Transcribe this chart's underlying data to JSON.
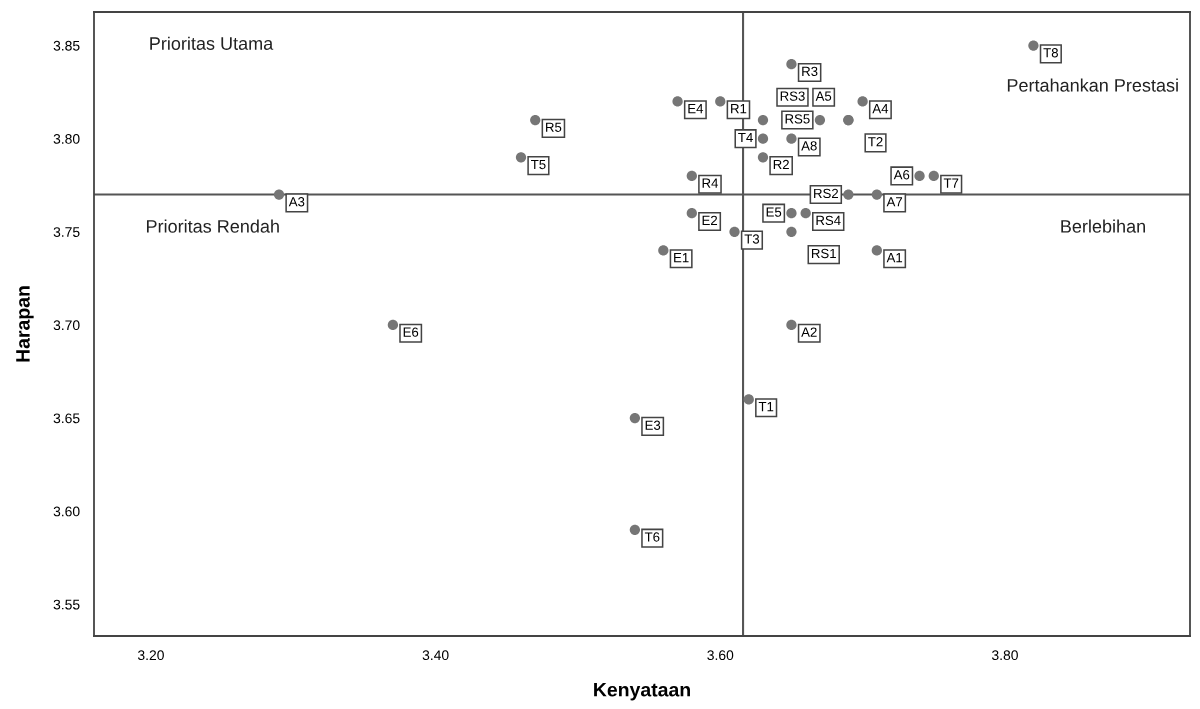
{
  "chart_data": {
    "type": "scatter",
    "xlabel": "Kenyataan",
    "ylabel": "Harapan",
    "x": [
      3.29,
      3.37,
      3.47,
      3.46,
      3.54,
      3.54,
      3.62,
      3.65,
      3.82,
      3.65,
      3.57,
      3.6,
      3.7,
      3.63,
      3.67,
      3.69,
      3.69,
      3.63,
      3.65,
      3.63,
      3.58,
      3.74,
      3.75,
      3.69,
      3.71,
      3.58,
      3.65,
      3.66,
      3.61,
      3.65,
      3.56,
      3.71
    ],
    "series": [
      {
        "color": "#767676",
        "values": [
          3.77,
          3.7,
          3.81,
          3.79,
          3.65,
          3.59,
          3.66,
          3.7,
          3.85,
          3.84,
          3.82,
          3.82,
          3.82,
          3.81,
          3.81,
          3.81,
          3.81,
          3.8,
          3.8,
          3.79,
          3.78,
          3.78,
          3.78,
          3.77,
          3.77,
          3.76,
          3.76,
          3.76,
          3.75,
          3.75,
          3.74,
          3.74
        ]
      }
    ],
    "marker": "circle",
    "xlim": [
      3.16,
      3.93
    ],
    "ylim": [
      3.533,
      3.868
    ],
    "xticks": [
      {
        "value": 3.2,
        "label": "3.20"
      },
      {
        "value": 3.4,
        "label": "3.40"
      },
      {
        "value": 3.6,
        "label": "3.60"
      },
      {
        "value": 3.8,
        "label": "3.80"
      }
    ],
    "yticks": [
      {
        "value": 3.55,
        "label": "3.55"
      },
      {
        "value": 3.6,
        "label": "3.60"
      },
      {
        "value": 3.65,
        "label": "3.65"
      },
      {
        "value": 3.7,
        "label": "3.70"
      },
      {
        "value": 3.75,
        "label": "3.75"
      },
      {
        "value": 3.8,
        "label": "3.80"
      },
      {
        "value": 3.85,
        "label": "3.85"
      }
    ],
    "grid": false,
    "legend": false,
    "ref_lines": [
      {
        "axis": "x",
        "value": 3.616,
        "color": "#555555"
      },
      {
        "axis": "y",
        "value": 3.77,
        "color": "#555555"
      }
    ],
    "annotations": [
      "Prioritas Utama",
      "Pertahankan Prestasi",
      "Prioritas Rendah",
      "Berlebihan",
      {
        "text": "A3",
        "x": 3.29,
        "y": 3.77
      },
      {
        "text": "E6",
        "x": 3.37,
        "y": 3.7
      },
      {
        "text": "R5",
        "x": 3.47,
        "y": 3.81
      },
      {
        "text": "T5",
        "x": 3.46,
        "y": 3.79
      },
      {
        "text": "E3",
        "x": 3.54,
        "y": 3.65
      },
      {
        "text": "T6",
        "x": 3.54,
        "y": 3.59
      },
      {
        "text": "T1",
        "x": 3.62,
        "y": 3.66
      },
      {
        "text": "A2",
        "x": 3.65,
        "y": 3.7
      },
      {
        "text": "T8",
        "x": 3.82,
        "y": 3.85
      },
      {
        "text": "R3",
        "x": 3.65,
        "y": 3.84
      },
      {
        "text": "E4",
        "x": 3.57,
        "y": 3.82
      },
      {
        "text": "R1",
        "x": 3.6,
        "y": 3.82
      },
      {
        "text": "A4",
        "x": 3.7,
        "y": 3.82
      },
      {
        "text": "RS3",
        "x": 3.63,
        "y": 3.81
      },
      {
        "text": "RS5",
        "x": 3.67,
        "y": 3.81
      },
      {
        "text": "T2",
        "x": 3.69,
        "y": 3.81
      },
      {
        "text": "A5",
        "x": 3.69,
        "y": 3.81
      },
      {
        "text": "T4",
        "x": 3.63,
        "y": 3.8
      },
      {
        "text": "A8",
        "x": 3.65,
        "y": 3.8
      },
      {
        "text": "R2",
        "x": 3.63,
        "y": 3.79
      },
      {
        "text": "R4",
        "x": 3.58,
        "y": 3.78
      },
      {
        "text": "A6",
        "x": 3.74,
        "y": 3.78
      },
      {
        "text": "T7",
        "x": 3.75,
        "y": 3.78
      },
      {
        "text": "RS2",
        "x": 3.69,
        "y": 3.77
      },
      {
        "text": "A7",
        "x": 3.71,
        "y": 3.77
      },
      {
        "text": "E2",
        "x": 3.58,
        "y": 3.76
      },
      {
        "text": "E5",
        "x": 3.65,
        "y": 3.76
      },
      {
        "text": "RS4",
        "x": 3.66,
        "y": 3.76
      },
      {
        "text": "T3",
        "x": 3.61,
        "y": 3.75
      },
      {
        "text": "RS1",
        "x": 3.65,
        "y": 3.75
      },
      {
        "text": "E1",
        "x": 3.56,
        "y": 3.74
      },
      {
        "text": "A1",
        "x": 3.71,
        "y": 3.74
      }
    ]
  }
}
